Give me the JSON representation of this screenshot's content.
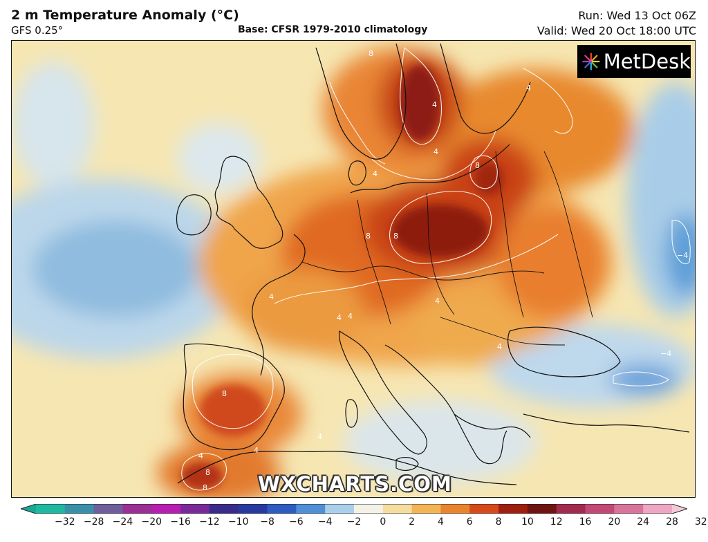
{
  "header": {
    "title": "2 m Temperature Anomaly (°C)",
    "model": "GFS 0.25°",
    "base": "Base: CFSR 1979-2010 climatology",
    "run": "Run: Wed 13 Oct 06Z",
    "valid": "Valid: Wed 20 Oct 18:00 UTC"
  },
  "brand": {
    "name": "MetDesk",
    "icon": "metdesk-starburst-icon"
  },
  "watermark": "WXCHARTS.COM",
  "colorbar": {
    "ticks": [
      "−32",
      "−28",
      "−24",
      "−20",
      "−16",
      "−12",
      "−10",
      "−8",
      "−6",
      "−4",
      "−2",
      "0",
      "2",
      "4",
      "6",
      "8",
      "10",
      "12",
      "16",
      "20",
      "24",
      "28",
      "32"
    ],
    "colors": [
      "#1fb8a0",
      "#3a8fa8",
      "#6f5d9c",
      "#9a2f94",
      "#b61fb0",
      "#7a2a98",
      "#3a2a8a",
      "#283a9e",
      "#2e5cc0",
      "#4f8fd6",
      "#a9cfea",
      "#f4f2e6",
      "#f7dca0",
      "#f2b455",
      "#e8842e",
      "#d44a1a",
      "#9e1e10",
      "#6e1412",
      "#a02a50",
      "#c24876",
      "#d8739c",
      "#eda6c4"
    ],
    "tip_left_color": "#1ca890",
    "tip_right_color": "#f6c8dc"
  },
  "map": {
    "contour_labels": [
      "8",
      "4",
      "4",
      "8",
      "8",
      "4",
      "8",
      "4",
      "4",
      "4",
      "4",
      "4",
      "8",
      "−4",
      "4",
      "4",
      "4",
      "8",
      "8",
      "−4",
      "4"
    ]
  }
}
